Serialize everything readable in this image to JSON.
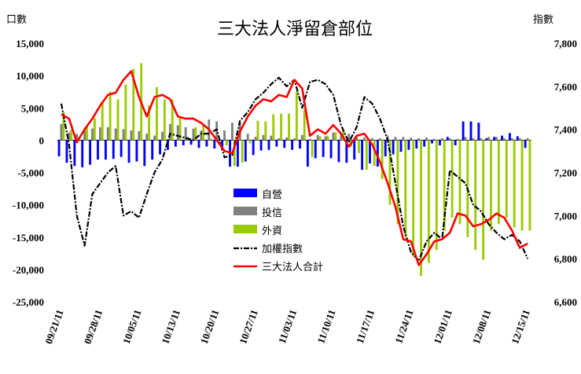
{
  "chart_data": {
    "type": "bar",
    "title": "三大法人淨留倉部位",
    "ylabel_left": "口數",
    "ylabel_right": "指數",
    "ylim_left": [
      -25000,
      15000
    ],
    "ylim_right": [
      6600,
      7800
    ],
    "yticks_left": [
      15000,
      10000,
      5000,
      0,
      -5000,
      -10000,
      -15000,
      -20000,
      -25000
    ],
    "yticks_left_labels": [
      "15,000",
      "10,000",
      "5,000",
      "0",
      "-5,000",
      "-10,000",
      "-15,000",
      "-20,000",
      "-25,000"
    ],
    "yticks_right": [
      7800,
      7600,
      7400,
      7200,
      7000,
      6800,
      6600
    ],
    "yticks_right_labels": [
      "7,800",
      "7,600",
      "7,400",
      "7,200",
      "7,000",
      "6,800",
      "6,600"
    ],
    "x_labels": [
      "09/21/11",
      "09/28/11",
      "10/05/11",
      "10/13/11",
      "10/20/11",
      "10/27/11",
      "11/03/11",
      "11/10/11",
      "11/17/11",
      "11/24/11",
      "12/01/11",
      "12/08/11",
      "12/15/11"
    ],
    "x_label_index": [
      0,
      5,
      10,
      15,
      20,
      25,
      30,
      35,
      40,
      45,
      50,
      55,
      60
    ],
    "num_days": 61,
    "legend_position": "center",
    "series": [
      {
        "name": "自營",
        "kind": "bar",
        "axis": "left",
        "color": "#0000ff",
        "values": [
          -2500,
          -3500,
          -4000,
          -4200,
          -3800,
          -3000,
          -3000,
          -2900,
          -2600,
          -3500,
          -3300,
          -4000,
          -3000,
          -2200,
          -1500,
          -1000,
          -800,
          -700,
          -1200,
          -1000,
          -1300,
          -1500,
          -4100,
          -4100,
          -3300,
          -2300,
          -1600,
          -1500,
          -1000,
          -1200,
          -1500,
          -1300,
          -4100,
          -2800,
          -2600,
          -2800,
          -3400,
          -3500,
          -3000,
          -4600,
          -3600,
          -4100,
          -2500,
          -2200,
          -1800,
          -1500,
          -1300,
          -1000,
          -500,
          -800,
          500,
          -800,
          2900,
          2900,
          2700,
          300,
          500,
          700,
          1100,
          600,
          -1200
        ]
      },
      {
        "name": "投信",
        "kind": "bar",
        "axis": "left",
        "color": "#808080",
        "values": [
          2500,
          1200,
          1000,
          1500,
          1800,
          2000,
          2000,
          1800,
          1700,
          1500,
          1400,
          1000,
          700,
          1300,
          2500,
          2300,
          2000,
          1800,
          1500,
          3200,
          2900,
          1500,
          2700,
          2700,
          1000,
          500,
          800,
          700,
          300,
          400,
          300,
          800,
          200,
          800,
          600,
          1200,
          900,
          1000,
          500,
          400,
          300,
          300,
          700,
          500,
          500,
          400,
          300,
          400,
          200,
          300,
          300,
          200,
          500,
          300,
          300,
          500,
          500,
          300,
          300,
          300,
          300
        ]
      },
      {
        "name": "外資",
        "kind": "bar",
        "axis": "left",
        "color": "#99cc00",
        "values": [
          4300,
          1600,
          -200,
          2200,
          3400,
          6000,
          7500,
          6300,
          8600,
          11000,
          11900,
          5400,
          8200,
          6300,
          6300,
          3500,
          500,
          2000,
          2500,
          200,
          -500,
          -800,
          -4000,
          -3500,
          -500,
          3000,
          2900,
          4000,
          4100,
          4100,
          7500,
          4800,
          -2600,
          600,
          700,
          1200,
          1500,
          -1000,
          -2000,
          -4600,
          -4000,
          -6000,
          -10000,
          -13000,
          -15000,
          -18000,
          -21000,
          -19000,
          -17000,
          -14000,
          -12000,
          -13000,
          -15000,
          -17000,
          -18500,
          -14000,
          -13000,
          -12000,
          -13500,
          -14000,
          -14000
        ]
      },
      {
        "name": "加權指數",
        "kind": "line",
        "axis": "right",
        "color": "#000000",
        "values": [
          7520,
          7330,
          7000,
          6860,
          7100,
          7150,
          7200,
          7230,
          7000,
          7020,
          6990,
          7100,
          7200,
          7260,
          7380,
          7370,
          7360,
          7350,
          7380,
          7380,
          7400,
          7270,
          7280,
          7440,
          7480,
          7540,
          7570,
          7610,
          7640,
          7600,
          7630,
          7500,
          7620,
          7630,
          7610,
          7560,
          7420,
          7340,
          7410,
          7550,
          7520,
          7450,
          7350,
          7150,
          6950,
          6830,
          6790,
          6880,
          6920,
          6890,
          7210,
          7180,
          7150,
          7050,
          7020,
          6960,
          6920,
          6890,
          6910,
          6880,
          6800
        ]
      },
      {
        "name": "三大法人合計",
        "kind": "line",
        "axis": "right",
        "color": "#ff0000",
        "values": [
          7470,
          7450,
          7340,
          7400,
          7450,
          7510,
          7560,
          7570,
          7630,
          7670,
          7550,
          7460,
          7550,
          7560,
          7540,
          7460,
          7450,
          7450,
          7430,
          7400,
          7350,
          7300,
          7290,
          7390,
          7460,
          7510,
          7540,
          7530,
          7560,
          7550,
          7630,
          7590,
          7370,
          7400,
          7380,
          7420,
          7380,
          7320,
          7370,
          7380,
          7330,
          7250,
          7150,
          7040,
          6890,
          6880,
          6770,
          6820,
          6880,
          6890,
          6920,
          7010,
          7000,
          6950,
          6960,
          6980,
          7010,
          6990,
          6930,
          6850,
          6870
        ]
      }
    ]
  }
}
